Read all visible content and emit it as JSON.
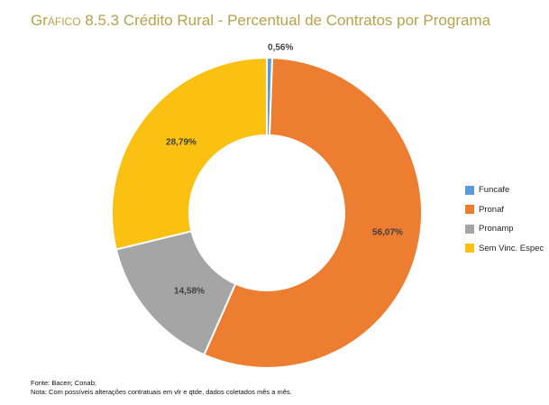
{
  "title": {
    "prefix": "Gr",
    "small_caps": "áfico",
    "rest": " 8.5.3 Crédito Rural - Percentual de Contratos por Programa"
  },
  "chart_data": {
    "type": "pie",
    "variant": "donut",
    "title": "Gráfico 8.5.3 Crédito Rural - Percentual de Contratos por Programa",
    "categories": [
      "Funcafe",
      "Pronaf",
      "Pronamp",
      "Sem Vinc. Espec"
    ],
    "values": [
      0.56,
      56.07,
      14.58,
      28.79
    ],
    "labels": [
      "0,56%",
      "56,07%",
      "14,58%",
      "28,79%"
    ],
    "colors": [
      "#5b9bd5",
      "#ed7d31",
      "#a5a5a5",
      "#fbc112"
    ],
    "legend_position": "right"
  },
  "legend": {
    "items": [
      {
        "label": "Funcafe",
        "color": "#5b9bd5"
      },
      {
        "label": "Pronaf",
        "color": "#ed7d31"
      },
      {
        "label": "Pronamp",
        "color": "#a5a5a5"
      },
      {
        "label": "Sem Vinc. Espec",
        "color": "#fbc112"
      }
    ]
  },
  "footer": {
    "source": "Fonte: Bacen; Conab;",
    "note": "Nota: Com possíveis alterações contratuais em vlr e qtde, dados coletados mês a mês."
  }
}
